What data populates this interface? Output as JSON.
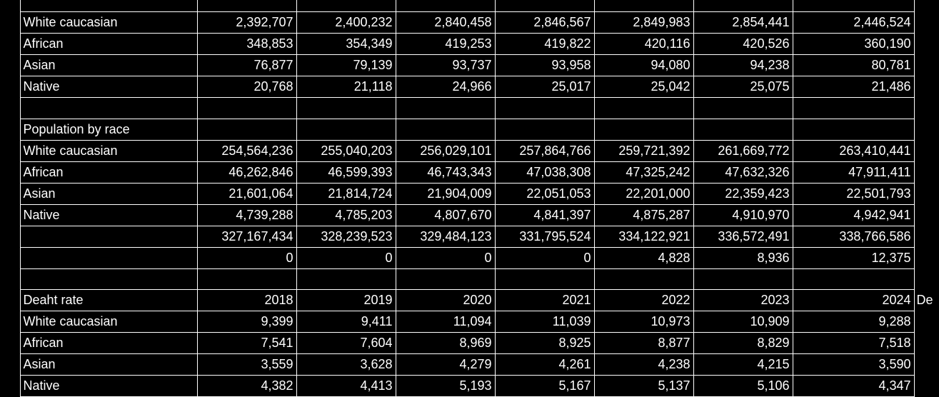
{
  "sheet": {
    "rows": [
      {
        "label": "",
        "values": [
          "",
          "",
          "",
          "",
          "",
          "",
          ""
        ],
        "edge": ""
      },
      {
        "label": "White caucasian",
        "values": [
          "2,392,707",
          "2,400,232",
          "2,840,458",
          "2,846,567",
          "2,849,983",
          "2,854,441",
          "2,446,524"
        ],
        "edge": ""
      },
      {
        "label": "African",
        "values": [
          "348,853",
          "354,349",
          "419,253",
          "419,822",
          "420,116",
          "420,526",
          "360,190"
        ],
        "edge": ""
      },
      {
        "label": "Asian",
        "values": [
          "76,877",
          "79,139",
          "93,737",
          "93,958",
          "94,080",
          "94,238",
          "80,781"
        ],
        "edge": ""
      },
      {
        "label": "Native",
        "values": [
          "20,768",
          "21,118",
          "24,966",
          "25,017",
          "25,042",
          "25,075",
          "21,486"
        ],
        "edge": ""
      },
      {
        "label": "",
        "values": [
          "",
          "",
          "",
          "",
          "",
          "",
          ""
        ],
        "edge": ""
      },
      {
        "label": "Population by race",
        "values": [
          "",
          "",
          "",
          "",
          "",
          "",
          ""
        ],
        "edge": ""
      },
      {
        "label": "White caucasian",
        "values": [
          "254,564,236",
          "255,040,203",
          "256,029,101",
          "257,864,766",
          "259,721,392",
          "261,669,772",
          "263,410,441"
        ],
        "edge": ""
      },
      {
        "label": "African",
        "values": [
          "46,262,846",
          "46,599,393",
          "46,743,343",
          "47,038,308",
          "47,325,242",
          "47,632,326",
          "47,911,411"
        ],
        "edge": ""
      },
      {
        "label": "Asian",
        "values": [
          "21,601,064",
          "21,814,724",
          "21,904,009",
          "22,051,053",
          "22,201,000",
          "22,359,423",
          "22,501,793"
        ],
        "edge": ""
      },
      {
        "label": "Native",
        "values": [
          "4,739,288",
          "4,785,203",
          "4,807,670",
          "4,841,397",
          "4,875,287",
          "4,910,970",
          "4,942,941"
        ],
        "edge": ""
      },
      {
        "label": "",
        "values": [
          "327,167,434",
          "328,239,523",
          "329,484,123",
          "331,795,524",
          "334,122,921",
          "336,572,491",
          "338,766,586"
        ],
        "edge": ""
      },
      {
        "label": "",
        "values": [
          "0",
          "0",
          "0",
          "0",
          "4,828",
          "8,936",
          "12,375"
        ],
        "edge": ""
      },
      {
        "label": "",
        "values": [
          "",
          "",
          "",
          "",
          "",
          "",
          ""
        ],
        "edge": ""
      },
      {
        "label": "Deaht rate",
        "values": [
          "2018",
          "2019",
          "2020",
          "2021",
          "2022",
          "2023",
          "2024"
        ],
        "edge": "De"
      },
      {
        "label": "White caucasian",
        "values": [
          "9,399",
          "9,411",
          "11,094",
          "11,039",
          "10,973",
          "10,909",
          "9,288"
        ],
        "edge": ""
      },
      {
        "label": "African",
        "values": [
          "7,541",
          "7,604",
          "8,969",
          "8,925",
          "8,877",
          "8,829",
          "7,518"
        ],
        "edge": ""
      },
      {
        "label": "Asian",
        "values": [
          "3,559",
          "3,628",
          "4,279",
          "4,261",
          "4,238",
          "4,215",
          "3,590"
        ],
        "edge": ""
      },
      {
        "label": "Native",
        "values": [
          "4,382",
          "4,413",
          "5,193",
          "5,167",
          "5,137",
          "5,106",
          "4,347"
        ],
        "edge": ""
      }
    ]
  },
  "colors": {
    "background": "#000000",
    "text": "#ffffff",
    "gridline": "#ffffff"
  }
}
